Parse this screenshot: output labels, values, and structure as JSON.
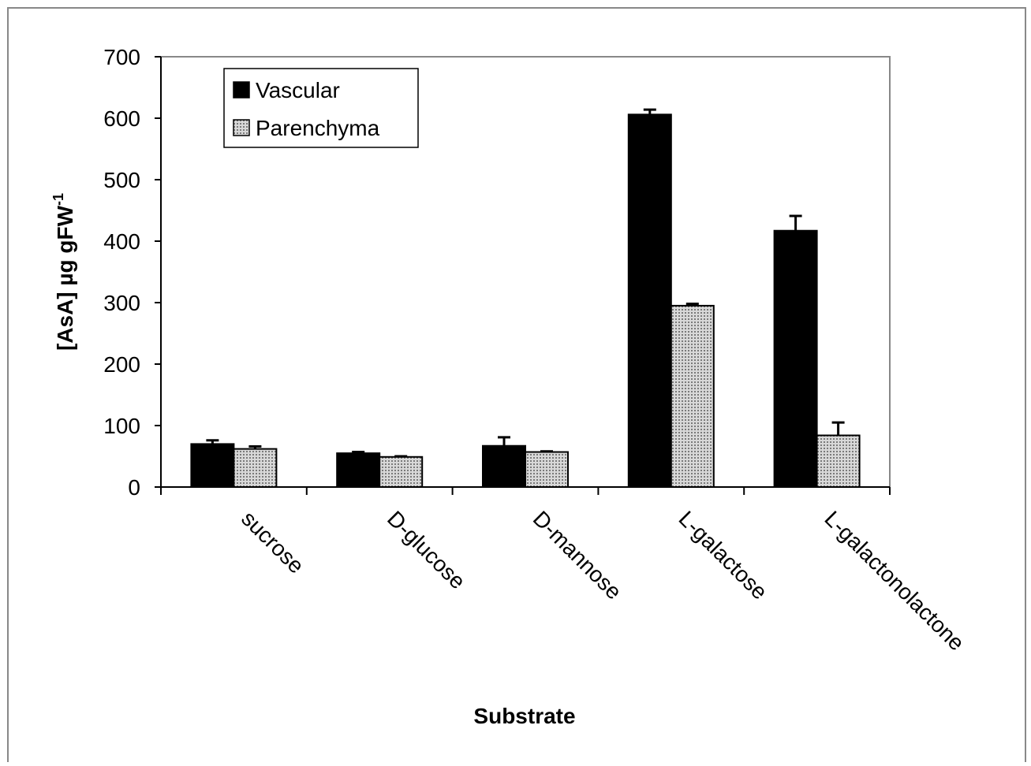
{
  "chart_data": {
    "type": "bar",
    "x_label": "Substrate",
    "y_label": "[AsA] µg gFW",
    "y_label_superscript": "-1",
    "categories": [
      "sucrose",
      "D-glucose",
      "D-mannose",
      "L-galactose",
      "L-galactonolactone"
    ],
    "series": [
      {
        "name": "Vascular",
        "color": "#000000",
        "values": [
          70,
          55,
          67,
          606,
          417
        ],
        "errors": [
          6,
          2,
          14,
          8,
          24
        ]
      },
      {
        "name": "Parenchyma",
        "color": "#b4b4b4",
        "values": [
          62,
          49,
          57,
          295,
          84
        ],
        "errors": [
          4,
          1,
          1,
          3,
          21
        ]
      }
    ],
    "ylim": [
      0,
      700
    ],
    "yticks": [
      0,
      100,
      200,
      300,
      400,
      500,
      600,
      700
    ],
    "legend": "upper-left"
  }
}
